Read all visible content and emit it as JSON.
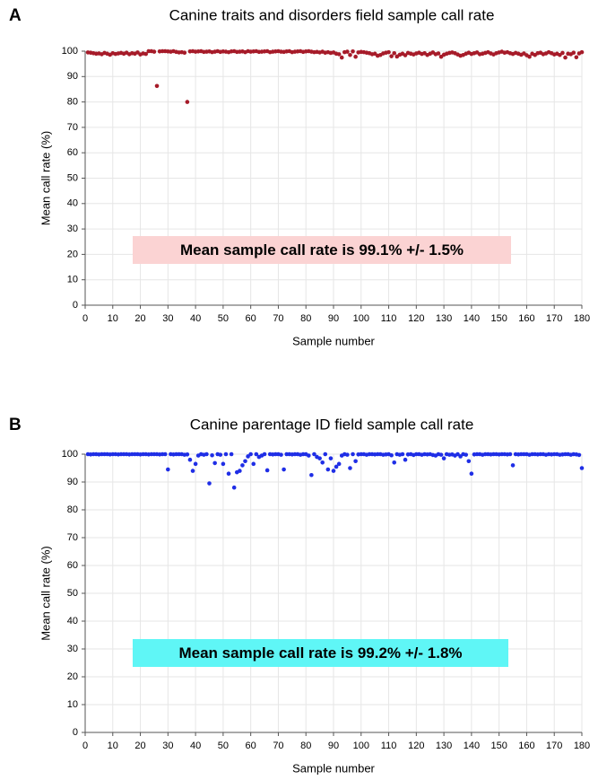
{
  "chart_data": [
    {
      "type": "scatter",
      "panel_label": "A",
      "title": "Canine traits and disorders field sample call rate",
      "xlabel": "Sample number",
      "ylabel": "Mean call rate (%)",
      "xlim": [
        0,
        180
      ],
      "xticks": [
        0,
        10,
        20,
        30,
        40,
        50,
        60,
        70,
        80,
        90,
        100,
        110,
        120,
        130,
        140,
        150,
        160,
        170,
        180
      ],
      "ylim": [
        0,
        100
      ],
      "yticks": [
        0,
        10,
        20,
        30,
        40,
        50,
        60,
        70,
        80,
        90,
        100
      ],
      "grid": true,
      "annotation": {
        "text": "Mean sample call rate is 99.1% +/- 1.5%",
        "background": "#fbd3d3"
      },
      "x": [
        1,
        2,
        3,
        4,
        5,
        6,
        7,
        8,
        9,
        10,
        11,
        12,
        13,
        14,
        15,
        16,
        17,
        18,
        19,
        20,
        21,
        22,
        23,
        24,
        25,
        26,
        27,
        28,
        29,
        30,
        31,
        32,
        33,
        34,
        35,
        36,
        37,
        38,
        39,
        40,
        41,
        42,
        43,
        44,
        45,
        46,
        47,
        48,
        49,
        50,
        51,
        52,
        53,
        54,
        55,
        56,
        57,
        58,
        59,
        60,
        61,
        62,
        63,
        64,
        65,
        66,
        67,
        68,
        69,
        70,
        71,
        72,
        73,
        74,
        75,
        76,
        77,
        78,
        79,
        80,
        81,
        82,
        83,
        84,
        85,
        86,
        87,
        88,
        89,
        90,
        91,
        92,
        93,
        94,
        95,
        96,
        97,
        98,
        99,
        100,
        101,
        102,
        103,
        104,
        105,
        106,
        107,
        108,
        109,
        110,
        111,
        112,
        113,
        114,
        115,
        116,
        117,
        118,
        119,
        120,
        121,
        122,
        123,
        124,
        125,
        126,
        127,
        128,
        129,
        130,
        131,
        132,
        133,
        134,
        135,
        136,
        137,
        138,
        139,
        140,
        141,
        142,
        143,
        144,
        145,
        146,
        147,
        148,
        149,
        150,
        151,
        152,
        153,
        154,
        155,
        156,
        157,
        158,
        159,
        160,
        161,
        162,
        163,
        164,
        165,
        166,
        167,
        168,
        169,
        170,
        171,
        172,
        173,
        174,
        175,
        176,
        177,
        178,
        179,
        180
      ],
      "series": [
        {
          "color": "#a61b29",
          "values": [
            99.5,
            99.4,
            99.2,
            99.0,
            99.1,
            98.8,
            99.3,
            99.0,
            98.6,
            99.2,
            98.9,
            99.1,
            99.3,
            99.0,
            99.4,
            98.8,
            99.2,
            99.0,
            99.5,
            98.7,
            99.1,
            98.9,
            100.0,
            100.0,
            99.8,
            86.3,
            99.9,
            100.0,
            100.0,
            99.9,
            99.8,
            100.0,
            99.7,
            99.5,
            99.6,
            99.4,
            80.0,
            99.9,
            100.0,
            99.8,
            99.9,
            100.0,
            99.7,
            99.8,
            99.9,
            99.6,
            99.8,
            100.0,
            99.7,
            99.9,
            99.8,
            99.6,
            99.9,
            100.0,
            99.7,
            99.8,
            99.9,
            99.6,
            100.0,
            99.8,
            99.9,
            100.0,
            99.7,
            99.8,
            99.9,
            100.0,
            99.6,
            99.8,
            99.9,
            100.0,
            99.8,
            99.7,
            99.9,
            100.0,
            99.6,
            99.8,
            99.9,
            100.0,
            99.7,
            99.9,
            100.0,
            99.8,
            99.6,
            99.7,
            99.5,
            99.8,
            99.4,
            99.6,
            99.3,
            99.5,
            99.0,
            98.8,
            97.5,
            99.6,
            99.8,
            98.5,
            99.9,
            97.8,
            99.5,
            99.7,
            99.6,
            99.4,
            99.2,
            98.8,
            99.0,
            98.2,
            98.5,
            99.1,
            99.4,
            99.6,
            98.0,
            99.2,
            97.9,
            98.6,
            99.0,
            98.4,
            99.3,
            99.0,
            98.7,
            99.1,
            99.4,
            98.9,
            99.2,
            98.5,
            99.0,
            99.5,
            98.8,
            99.1,
            97.8,
            98.6,
            99.0,
            99.3,
            99.5,
            99.2,
            98.7,
            98.2,
            98.5,
            99.0,
            99.4,
            98.9,
            99.2,
            99.5,
            98.8,
            99.0,
            99.3,
            99.6,
            99.1,
            98.7,
            99.2,
            99.5,
            99.8,
            99.4,
            99.6,
            99.2,
            98.9,
            99.3,
            99.0,
            98.6,
            99.1,
            98.4,
            97.8,
            99.0,
            98.5,
            99.2,
            99.4,
            98.8,
            99.1,
            99.6,
            99.2,
            98.7,
            99.0,
            98.5,
            99.3,
            97.5,
            99.0,
            98.8,
            99.4,
            97.6,
            99.1,
            99.6
          ]
        }
      ]
    },
    {
      "type": "scatter",
      "panel_label": "B",
      "title": "Canine parentage ID field sample call rate",
      "xlabel": "Sample number",
      "ylabel": "Mean call rate (%)",
      "xlim": [
        0,
        180
      ],
      "xticks": [
        0,
        10,
        20,
        30,
        40,
        50,
        60,
        70,
        80,
        90,
        100,
        110,
        120,
        130,
        140,
        150,
        160,
        170,
        180
      ],
      "ylim": [
        0,
        100
      ],
      "yticks": [
        0,
        10,
        20,
        30,
        40,
        50,
        60,
        70,
        80,
        90,
        100
      ],
      "grid": true,
      "annotation": {
        "text": "Mean sample call rate is 99.2% +/- 1.8%",
        "background": "#5ff6f6"
      },
      "x": [
        1,
        2,
        3,
        4,
        5,
        6,
        7,
        8,
        9,
        10,
        11,
        12,
        13,
        14,
        15,
        16,
        17,
        18,
        19,
        20,
        21,
        22,
        23,
        24,
        25,
        26,
        27,
        28,
        29,
        30,
        31,
        32,
        33,
        34,
        35,
        36,
        37,
        38,
        39,
        40,
        41,
        42,
        43,
        44,
        45,
        46,
        47,
        48,
        49,
        50,
        51,
        52,
        53,
        54,
        55,
        56,
        57,
        58,
        59,
        60,
        61,
        62,
        63,
        64,
        65,
        66,
        67,
        68,
        69,
        70,
        71,
        72,
        73,
        74,
        75,
        76,
        77,
        78,
        79,
        80,
        81,
        82,
        83,
        84,
        85,
        86,
        87,
        88,
        89,
        90,
        91,
        92,
        93,
        94,
        95,
        96,
        97,
        98,
        99,
        100,
        101,
        102,
        103,
        104,
        105,
        106,
        107,
        108,
        109,
        110,
        111,
        112,
        113,
        114,
        115,
        116,
        117,
        118,
        119,
        120,
        121,
        122,
        123,
        124,
        125,
        126,
        127,
        128,
        129,
        130,
        131,
        132,
        133,
        134,
        135,
        136,
        137,
        138,
        139,
        140,
        141,
        142,
        143,
        144,
        145,
        146,
        147,
        148,
        149,
        150,
        151,
        152,
        153,
        154,
        155,
        156,
        157,
        158,
        159,
        160,
        161,
        162,
        163,
        164,
        165,
        166,
        167,
        168,
        169,
        170,
        171,
        172,
        173,
        174,
        175,
        176,
        177,
        178,
        179,
        180
      ],
      "series": [
        {
          "color": "#1f2ee6",
          "values": [
            100,
            99.9,
            100,
            100,
            99.9,
            100,
            100,
            100,
            99.9,
            100,
            100,
            99.9,
            100,
            100,
            100,
            99.9,
            100,
            100,
            100,
            99.9,
            100,
            100,
            99.9,
            100,
            100,
            100,
            99.9,
            100,
            100,
            94.5,
            100,
            99.9,
            100,
            100,
            100,
            99.8,
            99.9,
            98.0,
            94.0,
            96.5,
            99.5,
            100,
            99.8,
            100,
            89.5,
            99.6,
            96.8,
            100,
            99.8,
            96.5,
            100,
            93.0,
            100,
            88.0,
            93.5,
            94.0,
            96.0,
            97.5,
            99.2,
            100,
            96.5,
            100,
            99.0,
            99.5,
            100,
            94.2,
            100,
            99.9,
            100,
            100,
            99.8,
            94.5,
            100,
            100,
            99.9,
            100,
            100,
            99.8,
            100,
            100,
            99.5,
            92.5,
            100,
            99.0,
            98.5,
            97.0,
            100,
            94.5,
            98.5,
            94.0,
            95.5,
            96.5,
            99.5,
            100,
            99.8,
            95.0,
            100,
            97.5,
            99.9,
            100,
            100,
            99.8,
            100,
            100,
            99.9,
            100,
            100,
            99.8,
            99.9,
            100,
            99.6,
            97.0,
            100,
            99.8,
            100,
            98.0,
            99.9,
            100,
            99.7,
            100,
            100,
            99.8,
            100,
            99.9,
            100,
            99.7,
            99.5,
            100,
            99.8,
            98.5,
            100,
            99.8,
            99.9,
            99.5,
            100,
            99.2,
            100,
            99.8,
            97.5,
            93.0,
            99.9,
            100,
            100,
            99.8,
            100,
            100,
            99.9,
            100,
            100,
            99.9,
            100,
            100,
            99.9,
            100,
            96.0,
            100,
            99.9,
            100,
            100,
            100,
            99.8,
            100,
            100,
            99.9,
            100,
            100,
            99.8,
            100,
            99.9,
            100,
            100,
            99.8,
            99.9,
            100,
            100,
            99.8,
            100,
            99.9,
            99.7,
            95.0
          ]
        }
      ]
    }
  ]
}
